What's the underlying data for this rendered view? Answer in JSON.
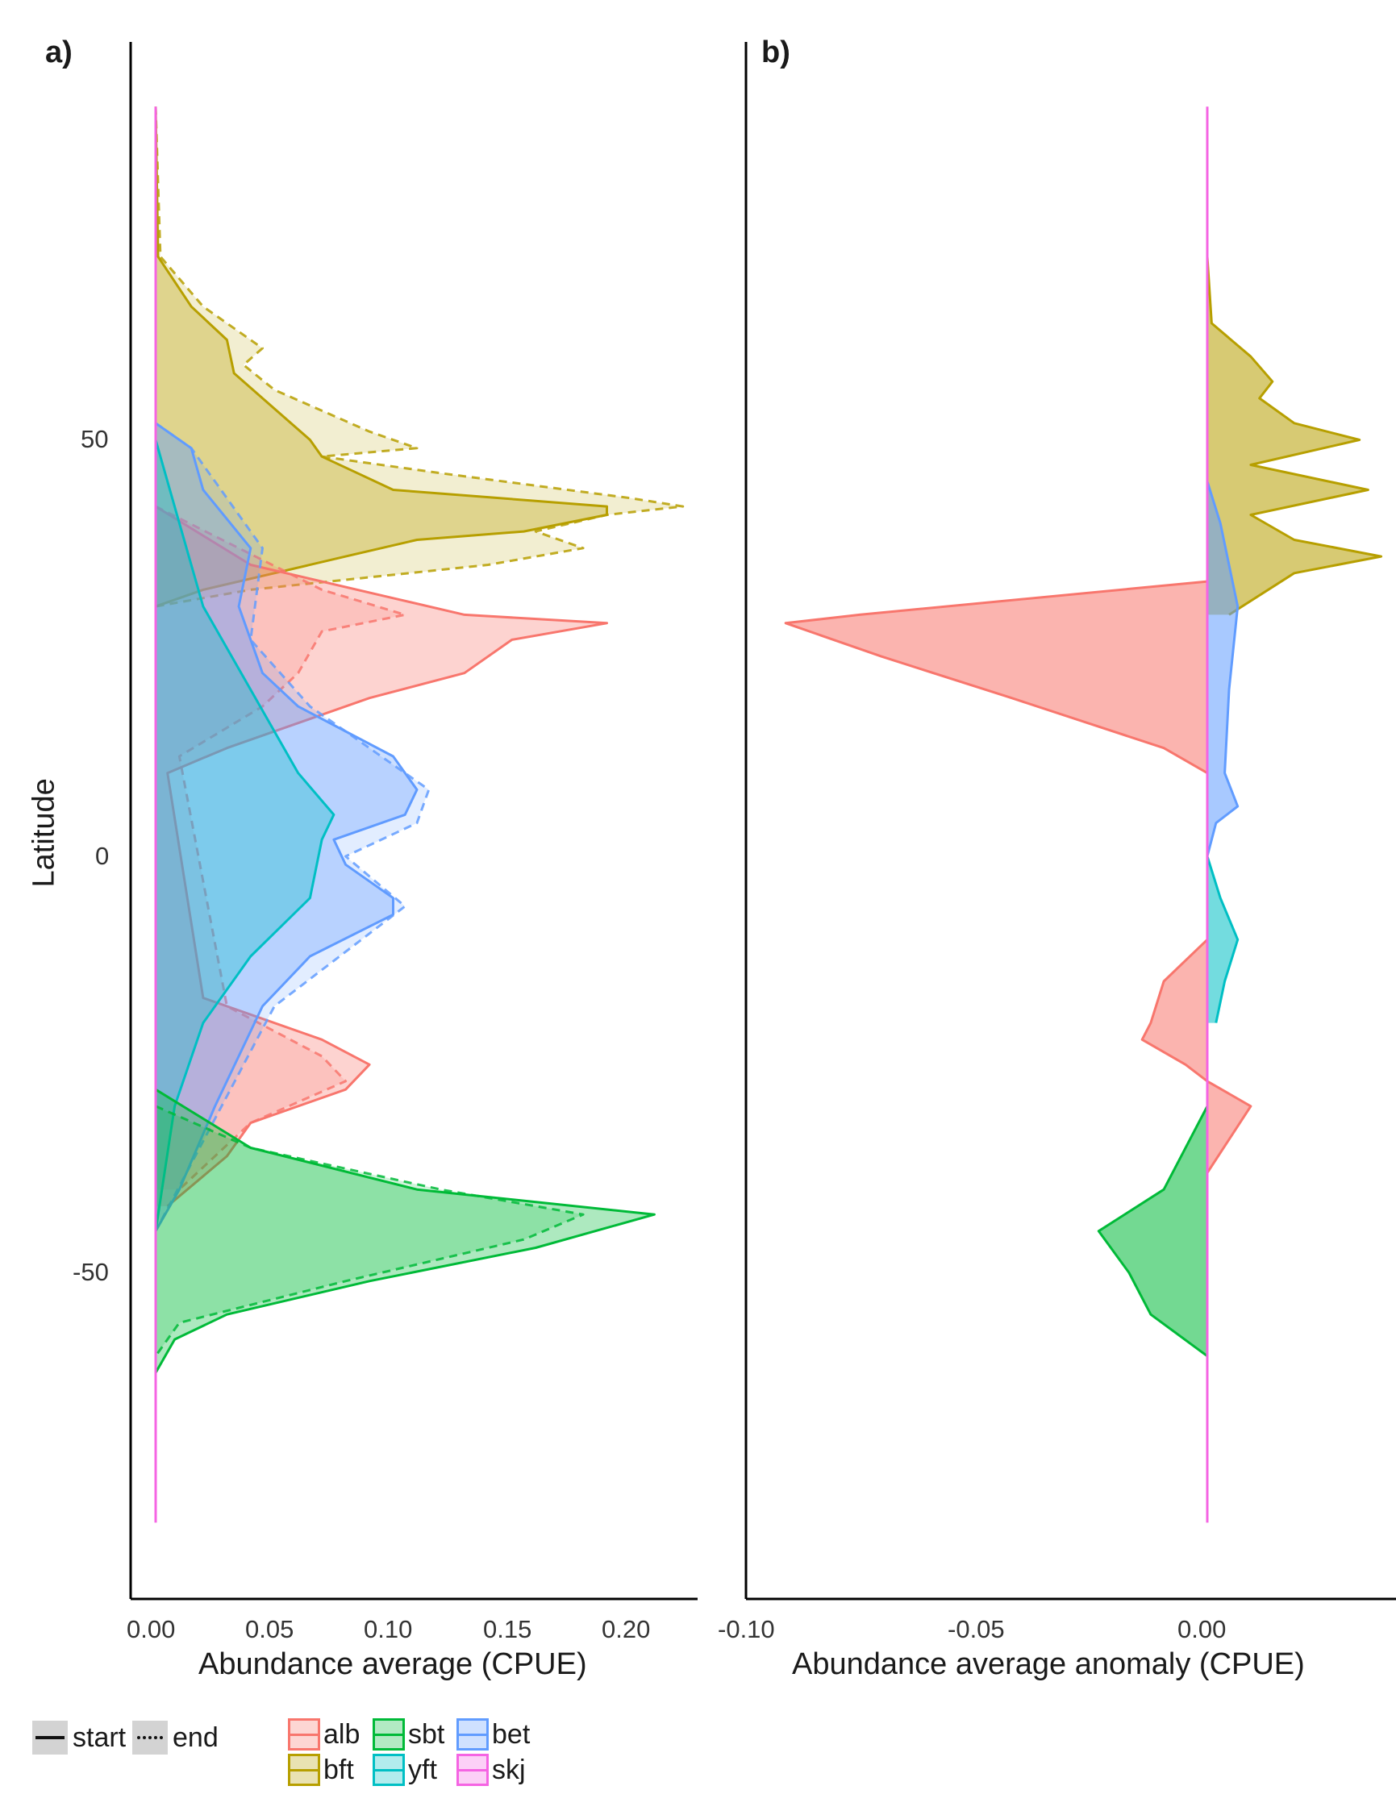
{
  "chart_data": [
    {
      "panel": "a)",
      "type": "area",
      "orientation": "horizontal (density-style ribbons along latitude)",
      "xlabel": "Abundance average (CPUE)",
      "ylabel": "Latitude",
      "x_ticks": [
        "0.00",
        "0.05",
        "0.10",
        "0.15",
        "0.20"
      ],
      "y_ticks": [
        "50",
        "0",
        "-50"
      ],
      "xlim": [
        -0.002,
        0.232
      ],
      "ylim": [
        -86,
        98
      ],
      "grid": false,
      "series": [
        {
          "species": "bft",
          "period": "start",
          "points": [
            [
              90,
              0
            ],
            [
              72,
              0.001
            ],
            [
              66,
              0.015
            ],
            [
              62,
              0.03
            ],
            [
              58,
              0.033
            ],
            [
              55,
              0.045
            ],
            [
              50,
              0.065
            ],
            [
              48,
              0.07
            ],
            [
              46,
              0.085
            ],
            [
              44,
              0.1
            ],
            [
              42,
              0.19
            ],
            [
              41,
              0.19
            ],
            [
              39,
              0.155
            ],
            [
              38,
              0.11
            ],
            [
              36,
              0.08
            ],
            [
              34,
              0.05
            ],
            [
              32,
              0.02
            ],
            [
              30,
              0,
              0
            ]
          ]
        },
        {
          "species": "bft",
          "period": "end",
          "points": [
            [
              90,
              0
            ],
            [
              72,
              0.002
            ],
            [
              66,
              0.02
            ],
            [
              61,
              0.045
            ],
            [
              59,
              0.037
            ],
            [
              56,
              0.05
            ],
            [
              51,
              0.09
            ],
            [
              49,
              0.11
            ],
            [
              48,
              0.07
            ],
            [
              46,
              0.12
            ],
            [
              43,
              0.2
            ],
            [
              42,
              0.222
            ],
            [
              41,
              0.19
            ],
            [
              39,
              0.16
            ],
            [
              37,
              0.18
            ],
            [
              35,
              0.14
            ],
            [
              32,
              0.04
            ],
            [
              30,
              0
            ]
          ]
        },
        {
          "species": "alb",
          "period": "start",
          "points": [
            [
              42,
              0
            ],
            [
              35,
              0.04
            ],
            [
              31,
              0.1
            ],
            [
              29,
              0.13
            ],
            [
              28,
              0.19
            ],
            [
              26,
              0.15
            ],
            [
              22,
              0.13
            ],
            [
              19,
              0.09
            ],
            [
              16,
              0.06
            ],
            [
              13,
              0.03
            ],
            [
              10,
              0.005
            ],
            [
              -17,
              0.02
            ],
            [
              -22,
              0.07
            ],
            [
              -25,
              0.09
            ],
            [
              -28,
              0.08
            ],
            [
              -32,
              0.04
            ],
            [
              -36,
              0.03
            ],
            [
              -42,
              0.005
            ]
          ]
        },
        {
          "species": "alb",
          "period": "end",
          "points": [
            [
              42,
              0
            ],
            [
              32,
              0.07
            ],
            [
              29,
              0.105
            ],
            [
              27,
              0.07
            ],
            [
              22,
              0.06
            ],
            [
              18,
              0.045
            ],
            [
              12,
              0.01
            ],
            [
              -18,
              0.03
            ],
            [
              -24,
              0.07
            ],
            [
              -27,
              0.08
            ],
            [
              -32,
              0.04
            ],
            [
              -40,
              0.01
            ]
          ]
        },
        {
          "species": "bet",
          "period": "start",
          "points": [
            [
              52,
              0
            ],
            [
              49,
              0.015
            ],
            [
              44,
              0.02
            ],
            [
              37,
              0.04
            ],
            [
              30,
              0.035
            ],
            [
              22,
              0.045
            ],
            [
              18,
              0.06
            ],
            [
              12,
              0.1
            ],
            [
              8,
              0.11
            ],
            [
              5,
              0.105
            ],
            [
              2,
              0.075
            ],
            [
              -1,
              0.08
            ],
            [
              -5,
              0.1
            ],
            [
              -7,
              0.1
            ],
            [
              -12,
              0.065
            ],
            [
              -18,
              0.045
            ],
            [
              -30,
              0.025
            ],
            [
              -40,
              0.01
            ],
            [
              -45,
              0
            ]
          ]
        },
        {
          "species": "bet",
          "period": "end",
          "points": [
            [
              52,
              0
            ],
            [
              49,
              0.015
            ],
            [
              37,
              0.045
            ],
            [
              26,
              0.04
            ],
            [
              18,
              0.065
            ],
            [
              8,
              0.115
            ],
            [
              4,
              0.11
            ],
            [
              0,
              0.08
            ],
            [
              -6,
              0.105
            ],
            [
              -18,
              0.05
            ],
            [
              -45,
              0
            ]
          ]
        },
        {
          "species": "yft",
          "period": "start",
          "points": [
            [
              50,
              0
            ],
            [
              40,
              0.01
            ],
            [
              30,
              0.02
            ],
            [
              20,
              0.04
            ],
            [
              10,
              0.06
            ],
            [
              5,
              0.075
            ],
            [
              2,
              0.07
            ],
            [
              -5,
              0.065
            ],
            [
              -12,
              0.04
            ],
            [
              -20,
              0.02
            ],
            [
              -30,
              0.008
            ],
            [
              -45,
              0
            ]
          ]
        },
        {
          "species": "sbt",
          "period": "start",
          "points": [
            [
              -28,
              0
            ],
            [
              -35,
              0.04
            ],
            [
              -40,
              0.11
            ],
            [
              -43,
              0.21
            ],
            [
              -45,
              0.185
            ],
            [
              -47,
              0.16
            ],
            [
              -51,
              0.09
            ],
            [
              -55,
              0.03
            ],
            [
              -58,
              0.008
            ],
            [
              -62,
              0
            ]
          ]
        },
        {
          "species": "sbt",
          "period": "end",
          "points": [
            [
              -30,
              0
            ],
            [
              -35,
              0.04
            ],
            [
              -40,
              0.12
            ],
            [
              -43,
              0.18
            ],
            [
              -46,
              0.155
            ],
            [
              -51,
              0.08
            ],
            [
              -56,
              0.01
            ],
            [
              -60,
              0
            ]
          ]
        },
        {
          "species": "skj",
          "period": "start",
          "points": [
            [
              90,
              0
            ],
            [
              -80,
              0
            ]
          ]
        }
      ]
    },
    {
      "panel": "b)",
      "type": "area",
      "orientation": "horizontal (anomaly ribbons along latitude)",
      "xlabel": "Abundance average anomaly (CPUE)",
      "ylabel": "Latitude",
      "x_ticks": [
        "-0.10",
        "-0.05",
        "0.00"
      ],
      "xlim": [
        -0.103,
        0.04
      ],
      "ylim": [
        -86,
        98
      ],
      "grid": false,
      "series": [
        {
          "species": "bft",
          "points": [
            [
              72,
              0
            ],
            [
              64,
              0.001
            ],
            [
              60,
              0.01
            ],
            [
              57,
              0.015
            ],
            [
              55,
              0.012
            ],
            [
              52,
              0.02
            ],
            [
              50,
              0.035
            ],
            [
              47,
              0.01
            ],
            [
              44,
              0.037
            ],
            [
              41,
              0.01
            ],
            [
              38,
              0.02
            ],
            [
              36,
              0.04
            ],
            [
              34,
              0.02
            ],
            [
              29,
              0.005
            ]
          ]
        },
        {
          "species": "alb",
          "points": [
            [
              33,
              0
            ],
            [
              29,
              -0.08
            ],
            [
              28,
              -0.097
            ],
            [
              24,
              -0.075
            ],
            [
              19,
              -0.045
            ],
            [
              13,
              -0.01
            ],
            [
              10,
              0
            ],
            [
              -10,
              0
            ],
            [
              -15,
              -0.01
            ],
            [
              -20,
              -0.013
            ],
            [
              -22,
              -0.015
            ],
            [
              -25,
              -0.005
            ],
            [
              -27,
              0
            ],
            [
              -30,
              0.01
            ],
            [
              -34,
              0.005
            ],
            [
              -38,
              0
            ]
          ]
        },
        {
          "species": "bet",
          "points": [
            [
              45,
              0
            ],
            [
              40,
              0.003
            ],
            [
              30,
              0.007
            ],
            [
              20,
              0.005
            ],
            [
              10,
              0.004
            ],
            [
              6,
              0.007
            ],
            [
              4,
              0.002
            ],
            [
              0,
              0
            ]
          ]
        },
        {
          "species": "yft",
          "points": [
            [
              0,
              0
            ],
            [
              -5,
              0.003
            ],
            [
              -10,
              0.007
            ],
            [
              -15,
              0.004
            ],
            [
              -20,
              0.002
            ]
          ]
        },
        {
          "species": "sbt",
          "points": [
            [
              -30,
              0
            ],
            [
              -40,
              -0.01
            ],
            [
              -45,
              -0.025
            ],
            [
              -50,
              -0.018
            ],
            [
              -55,
              -0.013
            ],
            [
              -60,
              0
            ]
          ]
        },
        {
          "species": "skj",
          "points": [
            [
              90,
              0
            ],
            [
              -80,
              0
            ]
          ]
        }
      ]
    }
  ],
  "panels": {
    "a": {
      "label": "a)",
      "xlabel": "Abundance average (CPUE)",
      "ylabel": "Latitude",
      "xticks": [
        "0.00",
        "0.05",
        "0.10",
        "0.15",
        "0.20"
      ],
      "yticks": [
        "50",
        "0",
        "-50"
      ]
    },
    "b": {
      "label": "b)",
      "xlabel": "Abundance average anomaly (CPUE)",
      "xticks": [
        "-0.10",
        "-0.05",
        "0.00"
      ]
    }
  },
  "legend": {
    "linetype": [
      {
        "label": "start",
        "style": "solid"
      },
      {
        "label": "end",
        "style": "dotted"
      }
    ],
    "species": [
      {
        "label": "alb",
        "color": "#F8766D"
      },
      {
        "label": "bft",
        "color": "#B79F00"
      },
      {
        "label": "sbt",
        "color": "#00BA38"
      },
      {
        "label": "yft",
        "color": "#00BFC4"
      },
      {
        "label": "bet",
        "color": "#619CFF"
      },
      {
        "label": "skj",
        "color": "#F564E3"
      }
    ]
  },
  "colors": {
    "alb": "#F8766D",
    "bft": "#B79F00",
    "sbt": "#00BA38",
    "yft": "#00BFC4",
    "bet": "#619CFF",
    "skj": "#F564E3",
    "axis": "#000000"
  }
}
